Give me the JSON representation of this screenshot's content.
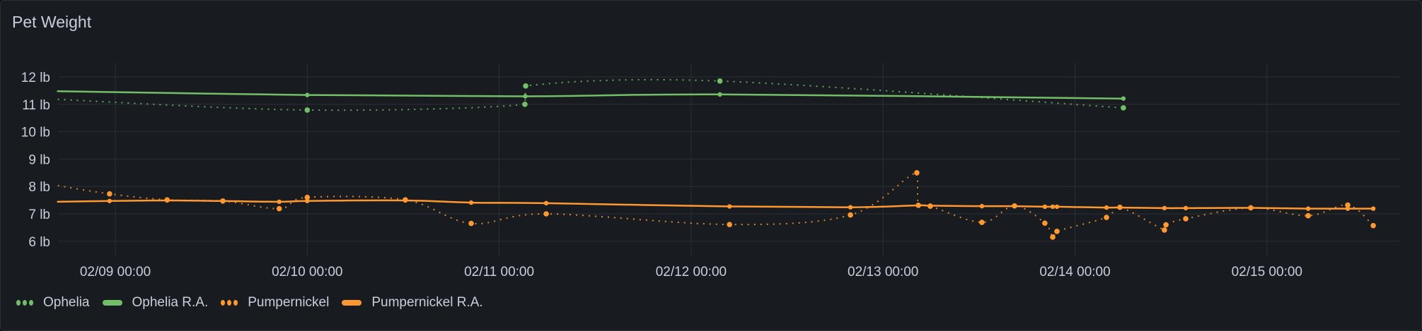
{
  "panel": {
    "title": "Pet Weight"
  },
  "colors": {
    "background": "#181b1f",
    "grid": "#2c2f35",
    "text": "#ccccdc",
    "ophelia": "#73bf69",
    "pumpernickel": "#ff9830"
  },
  "legend": [
    {
      "label": "Ophelia",
      "style": "dots",
      "color": "#73bf69"
    },
    {
      "label": "Ophelia R.A.",
      "style": "line",
      "color": "#73bf69"
    },
    {
      "label": "Pumpernickel",
      "style": "dots",
      "color": "#ff9830"
    },
    {
      "label": "Pumpernickel R.A.",
      "style": "line",
      "color": "#ff9830"
    }
  ],
  "chart_data": {
    "type": "line",
    "title": "Pet Weight",
    "xlabel": "",
    "ylabel": "",
    "y_unit": "lb",
    "y_ticks": [
      "12 lb",
      "11 lb",
      "10 lb",
      "9 lb",
      "8 lb",
      "7 lb",
      "6 lb"
    ],
    "y_tick_values": [
      12,
      11,
      10,
      9,
      8,
      7,
      6
    ],
    "ylim": [
      5.4,
      12.5
    ],
    "x_ticks": [
      "02/09 00:00",
      "02/10 00:00",
      "02/11 00:00",
      "02/12 00:00",
      "02/13 00:00",
      "02/14 00:00",
      "02/15 00:00"
    ],
    "x_tick_days": [
      0,
      1,
      2,
      3,
      4,
      5,
      6
    ],
    "x_unit_note": "x values are days since 02/09 00:00",
    "xlim": [
      -0.3,
      6.7
    ],
    "grid": true,
    "legend_position": "bottom",
    "series": [
      {
        "name": "Ophelia",
        "style": "dotted",
        "color": "#73bf69",
        "points": [
          [
            -0.3,
            11.18
          ],
          [
            1.0,
            10.79
          ],
          [
            2.134,
            11.0
          ],
          [
            2.138,
            11.67
          ],
          [
            3.15,
            11.85
          ],
          [
            5.252,
            10.87
          ]
        ]
      },
      {
        "name": "Ophelia R.A.",
        "style": "solid",
        "color": "#73bf69",
        "points": [
          [
            -0.3,
            11.48
          ],
          [
            1.0,
            11.34
          ],
          [
            2.136,
            11.29
          ],
          [
            3.15,
            11.36
          ],
          [
            5.252,
            11.21
          ]
        ]
      },
      {
        "name": "Pumpernickel",
        "style": "dotted",
        "color": "#ff9830",
        "points": [
          [
            -0.3,
            8.03
          ],
          [
            -0.03,
            7.73
          ],
          [
            0.27,
            7.51
          ],
          [
            0.56,
            7.47
          ],
          [
            0.854,
            7.19
          ],
          [
            1.0,
            7.6
          ],
          [
            1.511,
            7.51
          ],
          [
            1.854,
            6.65
          ],
          [
            2.245,
            7.0
          ],
          [
            3.2,
            6.61
          ],
          [
            3.83,
            6.96
          ],
          [
            4.176,
            8.5
          ],
          [
            4.184,
            7.31
          ],
          [
            4.246,
            7.28
          ],
          [
            4.515,
            6.69
          ],
          [
            4.685,
            7.29
          ],
          [
            4.843,
            6.66
          ],
          [
            4.884,
            6.15
          ],
          [
            4.906,
            6.36
          ],
          [
            5.164,
            6.87
          ],
          [
            5.234,
            7.24
          ],
          [
            5.466,
            6.41
          ],
          [
            5.474,
            6.6
          ],
          [
            5.577,
            6.82
          ],
          [
            5.916,
            7.22
          ],
          [
            6.215,
            6.93
          ],
          [
            6.421,
            7.32
          ],
          [
            6.554,
            6.57
          ]
        ]
      },
      {
        "name": "Pumpernickel R.A.",
        "style": "solid",
        "color": "#ff9830",
        "points": [
          [
            -0.3,
            7.44
          ],
          [
            -0.03,
            7.47
          ],
          [
            0.27,
            7.49
          ],
          [
            0.56,
            7.47
          ],
          [
            0.854,
            7.44
          ],
          [
            1.0,
            7.47
          ],
          [
            1.511,
            7.49
          ],
          [
            1.854,
            7.41
          ],
          [
            2.245,
            7.39
          ],
          [
            3.2,
            7.27
          ],
          [
            3.83,
            7.24
          ],
          [
            4.184,
            7.31
          ],
          [
            4.246,
            7.3
          ],
          [
            4.515,
            7.28
          ],
          [
            4.685,
            7.28
          ],
          [
            4.843,
            7.26
          ],
          [
            4.884,
            7.26
          ],
          [
            4.906,
            7.26
          ],
          [
            5.164,
            7.23
          ],
          [
            5.234,
            7.23
          ],
          [
            5.466,
            7.21
          ],
          [
            5.577,
            7.21
          ],
          [
            5.916,
            7.22
          ],
          [
            6.215,
            7.19
          ],
          [
            6.421,
            7.19
          ],
          [
            6.554,
            7.19
          ]
        ]
      }
    ]
  }
}
